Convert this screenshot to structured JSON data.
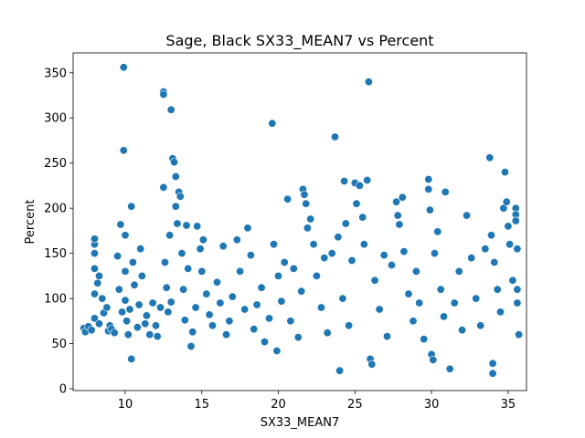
{
  "chart_data": {
    "type": "scatter",
    "title": "Sage, Black SX33_MEAN7 vs Percent",
    "xlabel": "SX33_MEAN7",
    "ylabel": "Percent",
    "xlim": [
      6.6,
      36.2
    ],
    "ylim": [
      -2,
      372
    ],
    "xticks": [
      10,
      15,
      20,
      25,
      30,
      35
    ],
    "yticks": [
      0,
      50,
      100,
      150,
      200,
      250,
      300,
      350
    ],
    "grid": false,
    "legend": "none",
    "marker_color": "#1f77b4",
    "points": [
      [
        7.3,
        67
      ],
      [
        7.4,
        63
      ],
      [
        7.6,
        69
      ],
      [
        7.8,
        65
      ],
      [
        8.0,
        78
      ],
      [
        8.0,
        105
      ],
      [
        8.0,
        133
      ],
      [
        8.0,
        150
      ],
      [
        8.0,
        160
      ],
      [
        8.0,
        166
      ],
      [
        8.2,
        117
      ],
      [
        8.3,
        125
      ],
      [
        8.3,
        72
      ],
      [
        8.5,
        100
      ],
      [
        8.6,
        84
      ],
      [
        8.8,
        90
      ],
      [
        8.9,
        64
      ],
      [
        9.0,
        70
      ],
      [
        9.1,
        66
      ],
      [
        9.3,
        62
      ],
      [
        9.5,
        147
      ],
      [
        9.6,
        110
      ],
      [
        9.7,
        182
      ],
      [
        9.8,
        85
      ],
      [
        9.9,
        356
      ],
      [
        9.9,
        264
      ],
      [
        10.0,
        170
      ],
      [
        10.0,
        130
      ],
      [
        10.0,
        98
      ],
      [
        10.1,
        75
      ],
      [
        10.2,
        60
      ],
      [
        10.3,
        88
      ],
      [
        10.4,
        202
      ],
      [
        10.4,
        33
      ],
      [
        10.5,
        140
      ],
      [
        10.6,
        115
      ],
      [
        10.8,
        68
      ],
      [
        10.9,
        93
      ],
      [
        11.0,
        155
      ],
      [
        11.1,
        125
      ],
      [
        11.3,
        72
      ],
      [
        11.4,
        81
      ],
      [
        11.6,
        60
      ],
      [
        11.8,
        95
      ],
      [
        12.0,
        70
      ],
      [
        12.1,
        58
      ],
      [
        12.3,
        90
      ],
      [
        12.5,
        223
      ],
      [
        12.5,
        329
      ],
      [
        12.5,
        326
      ],
      [
        12.6,
        140
      ],
      [
        12.7,
        112
      ],
      [
        12.8,
        85
      ],
      [
        12.9,
        170
      ],
      [
        13.0,
        309
      ],
      [
        13.0,
        96
      ],
      [
        13.1,
        255
      ],
      [
        13.2,
        251
      ],
      [
        13.3,
        235
      ],
      [
        13.3,
        202
      ],
      [
        13.4,
        183
      ],
      [
        13.5,
        218
      ],
      [
        13.6,
        213
      ],
      [
        13.7,
        150
      ],
      [
        13.8,
        110
      ],
      [
        13.9,
        76
      ],
      [
        14.0,
        181
      ],
      [
        14.1,
        133
      ],
      [
        14.3,
        47
      ],
      [
        14.4,
        63
      ],
      [
        14.6,
        90
      ],
      [
        14.7,
        180
      ],
      [
        14.9,
        155
      ],
      [
        15.0,
        130
      ],
      [
        15.1,
        165
      ],
      [
        15.3,
        105
      ],
      [
        15.5,
        82
      ],
      [
        15.7,
        70
      ],
      [
        16.0,
        118
      ],
      [
        16.2,
        95
      ],
      [
        16.4,
        158
      ],
      [
        16.6,
        60
      ],
      [
        16.8,
        75
      ],
      [
        17.0,
        102
      ],
      [
        17.3,
        165
      ],
      [
        17.5,
        130
      ],
      [
        17.8,
        88
      ],
      [
        18.0,
        178
      ],
      [
        18.2,
        148
      ],
      [
        18.4,
        66
      ],
      [
        18.6,
        93
      ],
      [
        18.9,
        112
      ],
      [
        19.1,
        52
      ],
      [
        19.4,
        78
      ],
      [
        19.6,
        294
      ],
      [
        19.7,
        160
      ],
      [
        19.9,
        42
      ],
      [
        20.0,
        125
      ],
      [
        20.2,
        97
      ],
      [
        20.4,
        140
      ],
      [
        20.6,
        210
      ],
      [
        20.8,
        75
      ],
      [
        21.0,
        133
      ],
      [
        21.3,
        57
      ],
      [
        21.5,
        108
      ],
      [
        21.6,
        221
      ],
      [
        21.7,
        215
      ],
      [
        21.8,
        205
      ],
      [
        21.9,
        178
      ],
      [
        22.1,
        188
      ],
      [
        22.3,
        160
      ],
      [
        22.5,
        125
      ],
      [
        22.8,
        90
      ],
      [
        23.0,
        145
      ],
      [
        23.2,
        62
      ],
      [
        23.5,
        150
      ],
      [
        23.7,
        279
      ],
      [
        23.9,
        168
      ],
      [
        24.0,
        20
      ],
      [
        24.2,
        100
      ],
      [
        24.3,
        230
      ],
      [
        24.4,
        183
      ],
      [
        24.6,
        70
      ],
      [
        24.8,
        142
      ],
      [
        25.0,
        228
      ],
      [
        25.1,
        205
      ],
      [
        25.3,
        225
      ],
      [
        25.5,
        190
      ],
      [
        25.6,
        160
      ],
      [
        25.8,
        231
      ],
      [
        25.9,
        340
      ],
      [
        26.0,
        33
      ],
      [
        26.1,
        27
      ],
      [
        26.3,
        120
      ],
      [
        26.6,
        88
      ],
      [
        26.9,
        148
      ],
      [
        27.1,
        58
      ],
      [
        27.4,
        137
      ],
      [
        27.7,
        207
      ],
      [
        27.8,
        192
      ],
      [
        27.9,
        182
      ],
      [
        28.1,
        212
      ],
      [
        28.2,
        152
      ],
      [
        28.5,
        105
      ],
      [
        28.8,
        75
      ],
      [
        29.0,
        130
      ],
      [
        29.2,
        95
      ],
      [
        29.5,
        55
      ],
      [
        29.8,
        232
      ],
      [
        29.8,
        221
      ],
      [
        29.9,
        198
      ],
      [
        30.0,
        38
      ],
      [
        30.1,
        32
      ],
      [
        30.2,
        150
      ],
      [
        30.4,
        174
      ],
      [
        30.6,
        110
      ],
      [
        30.8,
        80
      ],
      [
        30.9,
        218
      ],
      [
        31.2,
        22
      ],
      [
        31.5,
        95
      ],
      [
        31.8,
        130
      ],
      [
        32.0,
        65
      ],
      [
        32.3,
        192
      ],
      [
        32.6,
        145
      ],
      [
        32.9,
        100
      ],
      [
        33.2,
        70
      ],
      [
        33.5,
        155
      ],
      [
        33.8,
        256
      ],
      [
        33.9,
        170
      ],
      [
        34.0,
        28
      ],
      [
        34.0,
        17
      ],
      [
        34.1,
        140
      ],
      [
        34.3,
        110
      ],
      [
        34.5,
        85
      ],
      [
        34.7,
        200
      ],
      [
        34.8,
        240
      ],
      [
        34.9,
        207
      ],
      [
        35.0,
        180
      ],
      [
        35.1,
        160
      ],
      [
        35.3,
        120
      ],
      [
        35.5,
        200
      ],
      [
        35.5,
        193
      ],
      [
        35.5,
        186
      ],
      [
        35.6,
        155
      ],
      [
        35.6,
        110
      ],
      [
        35.6,
        95
      ],
      [
        35.7,
        60
      ]
    ]
  }
}
